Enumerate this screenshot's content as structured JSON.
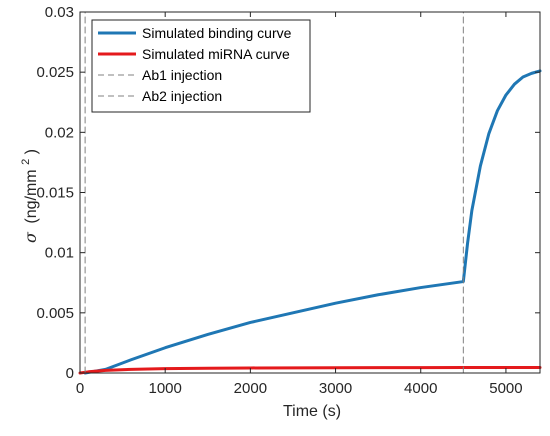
{
  "chart_data": {
    "type": "line",
    "title": "",
    "xlabel": "Time (s)",
    "ylabel_symbol": "σ",
    "ylabel_unit_pre": "(ng/mm",
    "ylabel_unit_sup": "2",
    "ylabel_unit_post": ")",
    "xlim": [
      0,
      5400
    ],
    "ylim": [
      0,
      0.03
    ],
    "x_ticks": [
      0,
      1000,
      2000,
      3000,
      4000,
      5000
    ],
    "x_tick_labels": [
      "0",
      "1000",
      "2000",
      "3000",
      "4000",
      "5000"
    ],
    "y_ticks": [
      0,
      0.005,
      0.01,
      0.015,
      0.02,
      0.025,
      0.03
    ],
    "y_tick_labels": [
      "0",
      "0.005",
      "0.01",
      "0.015",
      "0.02",
      "0.025",
      "0.03"
    ],
    "grid": false,
    "legend_position": "top-left",
    "series": [
      {
        "name": "Simulated binding curve",
        "color": "#1f77b4",
        "style": "solid",
        "x": [
          60,
          300,
          600,
          1000,
          1500,
          2000,
          2500,
          3000,
          3500,
          4000,
          4500,
          4500,
          4550,
          4600,
          4700,
          4800,
          4900,
          5000,
          5100,
          5200,
          5300,
          5400
        ],
        "y": [
          0,
          0.0003,
          0.0011,
          0.0021,
          0.0032,
          0.0042,
          0.005,
          0.0058,
          0.0065,
          0.0071,
          0.0076,
          0.0076,
          0.0108,
          0.0135,
          0.0172,
          0.0199,
          0.0218,
          0.0231,
          0.024,
          0.0246,
          0.0249,
          0.0251
        ]
      },
      {
        "name": "Simulated miRNA curve",
        "color": "#e41a1c",
        "style": "solid",
        "x": [
          0,
          100,
          300,
          600,
          1000,
          1500,
          2000,
          3000,
          4000,
          4500,
          5000,
          5400
        ],
        "y": [
          0,
          0.0001,
          0.00022,
          0.0003,
          0.00036,
          0.0004,
          0.00042,
          0.00044,
          0.00045,
          0.00046,
          0.00046,
          0.00046
        ]
      },
      {
        "name": "Ab1 injection",
        "color": "#808080",
        "style": "dashed",
        "x": [
          60,
          60
        ],
        "y": [
          0,
          0.03
        ]
      },
      {
        "name": "Ab2 injection",
        "color": "#808080",
        "style": "dashed",
        "x": [
          4500,
          4500
        ],
        "y": [
          0,
          0.03
        ]
      }
    ]
  }
}
